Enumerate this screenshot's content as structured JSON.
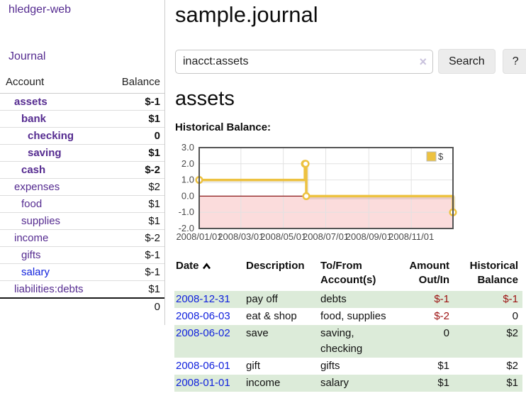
{
  "sidebar": {
    "brand": "hledger-web",
    "journal_label": "Journal",
    "accounts_table": {
      "headers": {
        "account": "Account",
        "balance": "Balance"
      },
      "rows": [
        {
          "name": "assets",
          "balance": "$-1",
          "level": 1,
          "bold": true
        },
        {
          "name": "bank",
          "balance": "$1",
          "level": 2,
          "bold": true
        },
        {
          "name": "checking",
          "balance": "0",
          "level": 3,
          "bold": true
        },
        {
          "name": "saving",
          "balance": "$1",
          "level": 3,
          "bold": true
        },
        {
          "name": "cash",
          "balance": "$-2",
          "level": 2,
          "bold": true
        },
        {
          "name": "expenses",
          "balance": "$2",
          "level": 1,
          "bold": false
        },
        {
          "name": "food",
          "balance": "$1",
          "level": 2,
          "bold": false
        },
        {
          "name": "supplies",
          "balance": "$1",
          "level": 2,
          "bold": false
        },
        {
          "name": "income",
          "balance": "$-2",
          "level": 1,
          "bold": false
        },
        {
          "name": "gifts",
          "balance": "$-1",
          "level": 2,
          "bold": false
        },
        {
          "name": "salary",
          "balance": "$-1",
          "level": 2,
          "bold": false,
          "unvisited": true
        },
        {
          "name": "liabilities:debts",
          "balance": "$1",
          "level": 1,
          "bold": false
        }
      ],
      "total": "0"
    }
  },
  "header": {
    "title": "sample.journal"
  },
  "search": {
    "value": "inacct:assets",
    "clear_icon": "×",
    "button_label": "Search",
    "help_label": "?"
  },
  "account_page": {
    "heading": "assets",
    "chart_label": "Historical Balance:"
  },
  "chart_data": {
    "type": "line",
    "title": "Historical Balance:",
    "steps": true,
    "series": [
      {
        "name": "$",
        "color": "#edc240",
        "points": [
          [
            "2008-01-01",
            1
          ],
          [
            "2008-06-01",
            2
          ],
          [
            "2008-06-02",
            2
          ],
          [
            "2008-06-03",
            0
          ],
          [
            "2008-12-31",
            -1
          ]
        ]
      }
    ],
    "xrange": [
      "2008-01-01",
      "2008-12-31"
    ],
    "ylim": [
      -2,
      3
    ],
    "yticks": [
      {
        "v": 3,
        "label": "3.0"
      },
      {
        "v": 2,
        "label": "2.0"
      },
      {
        "v": 1,
        "label": "1.0"
      },
      {
        "v": 0,
        "label": "0.0"
      },
      {
        "v": -1,
        "label": "-1.0"
      },
      {
        "v": -2,
        "label": "-2.0"
      }
    ],
    "xticks": [
      {
        "v": "2008-01-01",
        "label": "2008/01/01"
      },
      {
        "v": "2008-03-01",
        "label": "2008/03/01"
      },
      {
        "v": "2008-05-01",
        "label": "2008/05/01"
      },
      {
        "v": "2008-07-01",
        "label": "2008/07/01"
      },
      {
        "v": "2008-09-01",
        "label": "2008/09/01"
      },
      {
        "v": "2008-11-01",
        "label": "2008/11/01"
      }
    ],
    "legend": {
      "position": "top-right",
      "entries": [
        "$"
      ]
    },
    "grid": true,
    "negative_region_color": "#fbdcdc",
    "zero_line_color": "#8b1a1a"
  },
  "register_table": {
    "headers": {
      "date": "Date",
      "sort": "ascending",
      "description": "Description",
      "tofrom1": "To/From",
      "tofrom2": "Account(s)",
      "amount1": "Amount",
      "amount2": "Out/In",
      "balance1": "Historical",
      "balance2": "Balance"
    },
    "rows": [
      {
        "date": "2008-12-31",
        "description": "pay off",
        "accounts": "debts",
        "amount": "$-1",
        "balance": "$-1"
      },
      {
        "date": "2008-06-03",
        "description": "eat & shop",
        "accounts": "food, supplies",
        "amount": "$-2",
        "balance": "0"
      },
      {
        "date": "2008-06-02",
        "description": "save",
        "accounts": "saving, checking",
        "amount": "0",
        "balance": "$2"
      },
      {
        "date": "2008-06-01",
        "description": "gift",
        "accounts": "gifts",
        "amount": "$1",
        "balance": "$2"
      },
      {
        "date": "2008-01-01",
        "description": "income",
        "accounts": "salary",
        "amount": "$1",
        "balance": "$1"
      }
    ]
  },
  "colors": {
    "link_purple": "#552b90",
    "link_blue": "#1122dd",
    "negative_dark": "#9c1010",
    "negative_muted": "#bd7373",
    "row_stripe_green": "#dcebd9",
    "button_bg": "#ececec",
    "chart_series_yellow": "#edc240",
    "chart_negative_region": "#fbdcdc",
    "chart_zero_line": "#8b1a1a"
  }
}
